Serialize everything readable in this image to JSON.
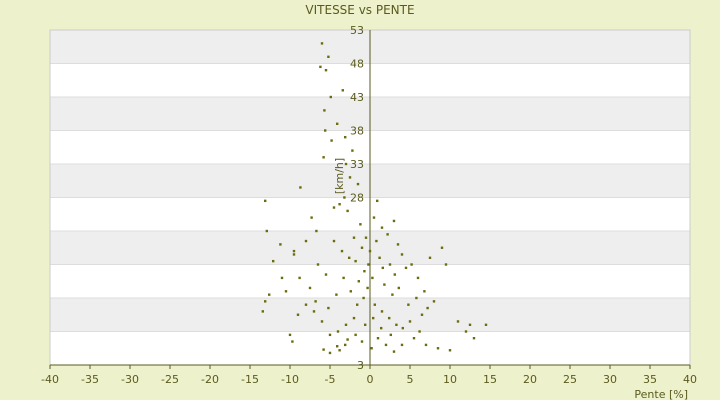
{
  "chart_data": {
    "type": "scatter",
    "title": "VITESSE vs PENTE",
    "xlabel": "Pente [%]",
    "ylabel": "[km/h]",
    "xlim": [
      -40,
      40
    ],
    "ylim": [
      3,
      53
    ],
    "x_ticks": [
      -40,
      -35,
      -30,
      -25,
      -20,
      -15,
      -10,
      -5,
      0,
      5,
      10,
      15,
      20,
      25,
      30,
      35,
      40
    ],
    "y_ticks": [
      3,
      8,
      13,
      18,
      23,
      28,
      33,
      38,
      43,
      48,
      53
    ],
    "y_tick_labels_shown": [
      3,
      28,
      33,
      38,
      43,
      48,
      53
    ],
    "grid": true,
    "colors": {
      "page_background": "#eef2cc",
      "plot_band_light": "#ffffff",
      "plot_band_dark": "#eeeeee",
      "marker": "#6b6b10",
      "axis": "#5a5a1e"
    },
    "series": [
      {
        "values": [
          [
            -6.0,
            51.0
          ],
          [
            -5.2,
            49.0
          ],
          [
            -6.2,
            47.5
          ],
          [
            -5.5,
            47.0
          ],
          [
            -3.4,
            44.0
          ],
          [
            -4.9,
            43.0
          ],
          [
            -5.7,
            41.0
          ],
          [
            -4.1,
            39.0
          ],
          [
            -5.6,
            38.0
          ],
          [
            -3.1,
            37.0
          ],
          [
            -4.8,
            36.5
          ],
          [
            -2.2,
            35.0
          ],
          [
            -5.8,
            34.0
          ],
          [
            -3.0,
            33.0
          ],
          [
            -8.7,
            29.5
          ],
          [
            -13.1,
            27.5
          ],
          [
            -12.9,
            23.0
          ],
          [
            -11.2,
            21.0
          ],
          [
            -9.5,
            19.5
          ],
          [
            -12.1,
            18.5
          ],
          [
            -8.8,
            16.0
          ],
          [
            -12.6,
            13.5
          ],
          [
            -13.1,
            12.5
          ],
          [
            -13.4,
            11.0
          ],
          [
            -10.0,
            7.5
          ],
          [
            -9.7,
            6.5
          ],
          [
            -5.8,
            5.3
          ],
          [
            -5.0,
            4.8
          ],
          [
            -4.1,
            5.8
          ],
          [
            -3.1,
            6.0
          ],
          [
            -3.8,
            27.0
          ],
          [
            -3.2,
            28.0
          ],
          [
            -2.8,
            26.0
          ],
          [
            -2.5,
            31.0
          ],
          [
            -1.5,
            30.0
          ],
          [
            -1.2,
            24.0
          ],
          [
            -2.0,
            22.0
          ],
          [
            -1.0,
            20.5
          ],
          [
            0.5,
            25.0
          ],
          [
            0.9,
            27.5
          ],
          [
            1.5,
            23.5
          ],
          [
            2.2,
            22.5
          ],
          [
            3.0,
            24.5
          ],
          [
            3.5,
            21.0
          ],
          [
            4.0,
            19.5
          ],
          [
            -0.7,
            17.0
          ],
          [
            -1.8,
            18.5
          ],
          [
            -2.6,
            19.0
          ],
          [
            -3.5,
            20.0
          ],
          [
            -4.5,
            21.5
          ],
          [
            1.2,
            19.0
          ],
          [
            2.5,
            18.0
          ],
          [
            0.3,
            16.0
          ],
          [
            -0.3,
            14.5
          ],
          [
            -1.4,
            15.5
          ],
          [
            1.8,
            15.0
          ],
          [
            3.1,
            16.5
          ],
          [
            4.5,
            17.5
          ],
          [
            5.2,
            18.0
          ],
          [
            6.0,
            16.0
          ],
          [
            -0.8,
            13.0
          ],
          [
            0.6,
            12.0
          ],
          [
            1.5,
            11.0
          ],
          [
            2.4,
            10.0
          ],
          [
            3.3,
            9.0
          ],
          [
            4.1,
            8.5
          ],
          [
            5.0,
            9.5
          ],
          [
            6.5,
            10.5
          ],
          [
            7.2,
            11.5
          ],
          [
            8.0,
            12.5
          ],
          [
            -2.0,
            10.0
          ],
          [
            -3.0,
            9.0
          ],
          [
            -4.0,
            8.0
          ],
          [
            -5.0,
            7.5
          ],
          [
            -6.0,
            9.5
          ],
          [
            -7.0,
            11.0
          ],
          [
            -8.0,
            12.0
          ],
          [
            -1.0,
            6.5
          ],
          [
            0.2,
            5.5
          ],
          [
            1.0,
            7.0
          ],
          [
            2.0,
            6.0
          ],
          [
            3.0,
            5.0
          ],
          [
            4.0,
            6.0
          ],
          [
            5.5,
            7.0
          ],
          [
            7.0,
            6.0
          ],
          [
            8.5,
            5.5
          ],
          [
            10.0,
            5.2
          ],
          [
            11.0,
            9.5
          ],
          [
            12.0,
            8.0
          ],
          [
            12.5,
            9.0
          ],
          [
            13.0,
            7.0
          ],
          [
            14.5,
            9.0
          ],
          [
            9.5,
            18.0
          ],
          [
            9.0,
            20.5
          ],
          [
            7.5,
            19.0
          ],
          [
            6.8,
            14.0
          ],
          [
            5.8,
            13.0
          ],
          [
            4.8,
            12.0
          ],
          [
            -5.5,
            16.5
          ],
          [
            -6.5,
            18.0
          ],
          [
            -7.5,
            14.5
          ],
          [
            -6.8,
            12.5
          ],
          [
            -9.0,
            10.5
          ],
          [
            -10.5,
            14.0
          ],
          [
            -11.0,
            16.0
          ],
          [
            -9.5,
            20.0
          ],
          [
            -8.0,
            21.5
          ],
          [
            -6.7,
            23.0
          ],
          [
            -7.3,
            25.0
          ],
          [
            -4.5,
            26.5
          ],
          [
            -0.5,
            22.0
          ],
          [
            0.0,
            20.0
          ],
          [
            0.8,
            21.5
          ],
          [
            -0.2,
            18.0
          ],
          [
            1.6,
            17.5
          ],
          [
            -1.6,
            12.0
          ],
          [
            -2.4,
            14.0
          ],
          [
            2.8,
            13.5
          ],
          [
            3.6,
            14.5
          ],
          [
            -3.3,
            16.0
          ],
          [
            -4.2,
            13.5
          ],
          [
            -5.2,
            11.5
          ],
          [
            0.4,
            10.0
          ],
          [
            -0.6,
            9.0
          ],
          [
            1.4,
            8.5
          ],
          [
            2.6,
            7.5
          ],
          [
            -1.8,
            7.5
          ],
          [
            -2.8,
            6.8
          ],
          [
            -3.8,
            5.2
          ],
          [
            6.2,
            8.0
          ]
        ]
      }
    ]
  }
}
